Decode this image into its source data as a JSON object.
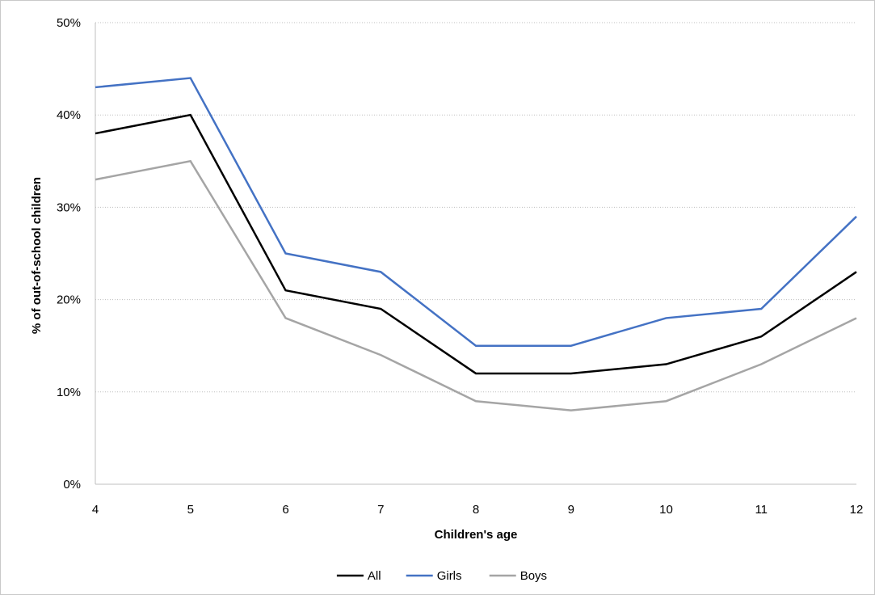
{
  "chart_data": {
    "type": "line",
    "title": "",
    "xlabel": "Children's age",
    "ylabel": "% of out-of-school children",
    "x": [
      4,
      5,
      6,
      7,
      8,
      9,
      10,
      11,
      12
    ],
    "x_tick_labels": [
      "4",
      "5",
      "6",
      "7",
      "8",
      "9",
      "10",
      "11",
      "12"
    ],
    "ylim": [
      0,
      50
    ],
    "y_ticks": [
      0,
      10,
      20,
      30,
      40,
      50
    ],
    "y_tick_labels": [
      "0%",
      "10%",
      "20%",
      "30%",
      "40%",
      "50%"
    ],
    "grid": "horizontal dotted",
    "legend_position": "bottom",
    "series": [
      {
        "name": "All",
        "color": "#000000",
        "values": [
          38,
          40,
          21,
          19,
          12,
          12,
          13,
          16,
          23
        ]
      },
      {
        "name": "Girls",
        "color": "#4472c4",
        "values": [
          43,
          44,
          25,
          23,
          15,
          15,
          18,
          19,
          29
        ]
      },
      {
        "name": "Boys",
        "color": "#a5a5a5",
        "values": [
          33,
          35,
          18,
          14,
          9,
          8,
          9,
          13,
          18
        ]
      }
    ]
  }
}
